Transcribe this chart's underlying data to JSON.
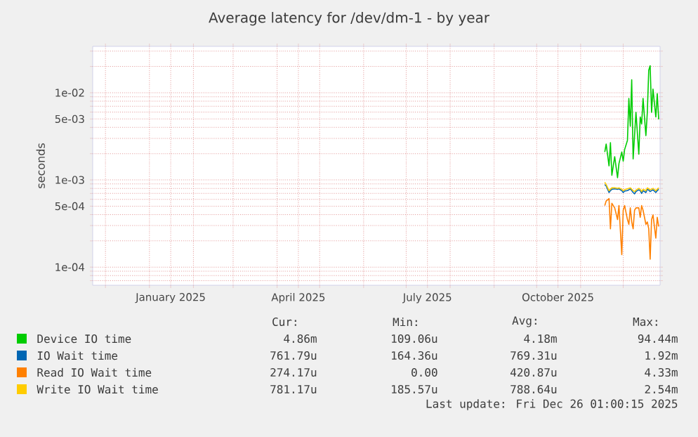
{
  "chart_data": {
    "type": "line",
    "title": "Average latency for /dev/dm-1 - by year",
    "ylabel": "seconds",
    "log": "y",
    "grid": true,
    "legend": "bottom",
    "marker": "none",
    "line_style": "solid",
    "x": [
      "2025-11-18",
      "2025-11-19",
      "2025-11-21",
      "2025-11-22",
      "2025-11-23",
      "2025-11-25",
      "2025-11-27",
      "2025-11-28",
      "2025-11-30",
      "2025-12-01",
      "2025-12-02",
      "2025-12-04",
      "2025-12-05",
      "2025-12-06",
      "2025-12-07",
      "2025-12-08",
      "2025-12-09",
      "2025-12-10",
      "2025-12-12",
      "2025-12-13",
      "2025-12-14",
      "2025-12-15",
      "2025-12-17",
      "2025-12-18",
      "2025-12-19",
      "2025-12-20",
      "2025-12-21",
      "2025-12-22",
      "2025-12-24",
      "2025-12-25",
      "2025-12-26"
    ],
    "xlim": [
      "2024-11-22",
      "2025-12-27"
    ],
    "xticks": [
      {
        "value": "2024-12-01",
        "label": null
      },
      {
        "value": "2025-01-01",
        "label": null
      },
      {
        "value": "2025-01-16",
        "label": "January 2025"
      },
      {
        "value": "2025-02-01",
        "label": null
      },
      {
        "value": "2025-03-01",
        "label": null
      },
      {
        "value": "2025-04-01",
        "label": null
      },
      {
        "value": "2025-04-16",
        "label": "April 2025"
      },
      {
        "value": "2025-05-01",
        "label": null
      },
      {
        "value": "2025-06-01",
        "label": null
      },
      {
        "value": "2025-07-01",
        "label": null
      },
      {
        "value": "2025-07-16",
        "label": "July 2025"
      },
      {
        "value": "2025-08-01",
        "label": null
      },
      {
        "value": "2025-09-01",
        "label": null
      },
      {
        "value": "2025-10-01",
        "label": null
      },
      {
        "value": "2025-10-16",
        "label": "October 2025"
      },
      {
        "value": "2025-11-01",
        "label": null
      },
      {
        "value": "2025-12-01",
        "label": null
      }
    ],
    "ylim": [
      6.2e-05,
      0.034
    ],
    "yticks": [
      {
        "value": 7e-05,
        "label": null
      },
      {
        "value": 8e-05,
        "label": null
      },
      {
        "value": 9e-05,
        "label": null
      },
      {
        "value": 0.0001,
        "label": "1e-04"
      },
      {
        "value": 0.0002,
        "label": null
      },
      {
        "value": 0.0003,
        "label": null
      },
      {
        "value": 0.0004,
        "label": null
      },
      {
        "value": 0.0005,
        "label": "5e-04"
      },
      {
        "value": 0.0006,
        "label": null
      },
      {
        "value": 0.0007,
        "label": null
      },
      {
        "value": 0.0008,
        "label": null
      },
      {
        "value": 0.0009,
        "label": null
      },
      {
        "value": 0.001,
        "label": "1e-03"
      },
      {
        "value": 0.002,
        "label": null
      },
      {
        "value": 0.003,
        "label": null
      },
      {
        "value": 0.004,
        "label": null
      },
      {
        "value": 0.005,
        "label": "5e-03"
      },
      {
        "value": 0.006,
        "label": null
      },
      {
        "value": 0.007,
        "label": null
      },
      {
        "value": 0.008,
        "label": null
      },
      {
        "value": 0.009,
        "label": null
      },
      {
        "value": 0.01,
        "label": "1e-02"
      },
      {
        "value": 0.02,
        "label": null
      },
      {
        "value": 0.03,
        "label": null
      }
    ],
    "series": [
      {
        "name": "Device IO time",
        "color": "#00cc00",
        "values": [
          0.00209,
          0.00258,
          0.00145,
          0.00268,
          0.00113,
          0.00185,
          0.00106,
          0.00154,
          0.00209,
          0.00164,
          0.00223,
          0.00285,
          0.0086,
          0.00412,
          0.0141,
          0.00174,
          0.00322,
          0.00596,
          0.00197,
          0.00527,
          0.00438,
          0.0086,
          0.00322,
          0.00596,
          0.0181,
          0.0204,
          0.00596,
          0.011,
          0.00527,
          0.00976,
          0.00495
        ]
      },
      {
        "name": "IO Wait time",
        "color": "#0066b3",
        "values": [
          0.000885,
          0.000852,
          0.000717,
          0.000754,
          0.000782,
          0.000791,
          0.000782,
          0.000791,
          0.000754,
          0.000717,
          0.000745,
          0.000754,
          0.000772,
          0.000791,
          0.000754,
          0.000717,
          0.000692,
          0.000735,
          0.000772,
          0.000754,
          0.0007,
          0.000754,
          0.000717,
          0.000782,
          0.000763,
          0.000735,
          0.000754,
          0.000772,
          0.000717,
          0.000754,
          0.000782
        ]
      },
      {
        "name": "Read IO Wait time",
        "color": "#ff8000",
        "values": [
          0.000508,
          0.000574,
          0.000611,
          0.000275,
          0.00054,
          0.000478,
          0.000351,
          0.000508,
          0.000139,
          0.000449,
          0.000508,
          0.000351,
          0.00031,
          0.000478,
          0.00033,
          0.000275,
          0.000449,
          0.000478,
          0.000478,
          0.000373,
          0.000508,
          0.000449,
          0.00031,
          0.00033,
          0.000275,
          0.000123,
          0.000351,
          0.000397,
          0.000215,
          0.000373,
          0.000292
        ]
      },
      {
        "name": "Write IO Wait time",
        "color": "#ffcc00",
        "values": [
          0.00094,
          0.000885,
          0.000754,
          0.000782,
          0.000811,
          0.000811,
          0.000801,
          0.000811,
          0.000782,
          0.000754,
          0.000772,
          0.000791,
          0.000801,
          0.000811,
          0.000782,
          0.000754,
          0.000735,
          0.000763,
          0.000801,
          0.000782,
          0.000735,
          0.000782,
          0.000754,
          0.000811,
          0.000791,
          0.000772,
          0.000782,
          0.000801,
          0.000754,
          0.000782,
          0.000811
        ]
      }
    ],
    "annotations": [
      "Cur:",
      "Min:",
      "Avg:",
      "Max:",
      "4.86m",
      "109.06u",
      "4.18m",
      "94.44m",
      "761.79u",
      "164.36u",
      "769.31u",
      "1.92m",
      "274.17u",
      "0.00",
      "420.87u",
      "4.33m",
      "781.17u",
      "185.57u",
      "788.64u",
      "2.54m",
      "Last update: Fri Dec 26 01:00:15 2025"
    ]
  }
}
